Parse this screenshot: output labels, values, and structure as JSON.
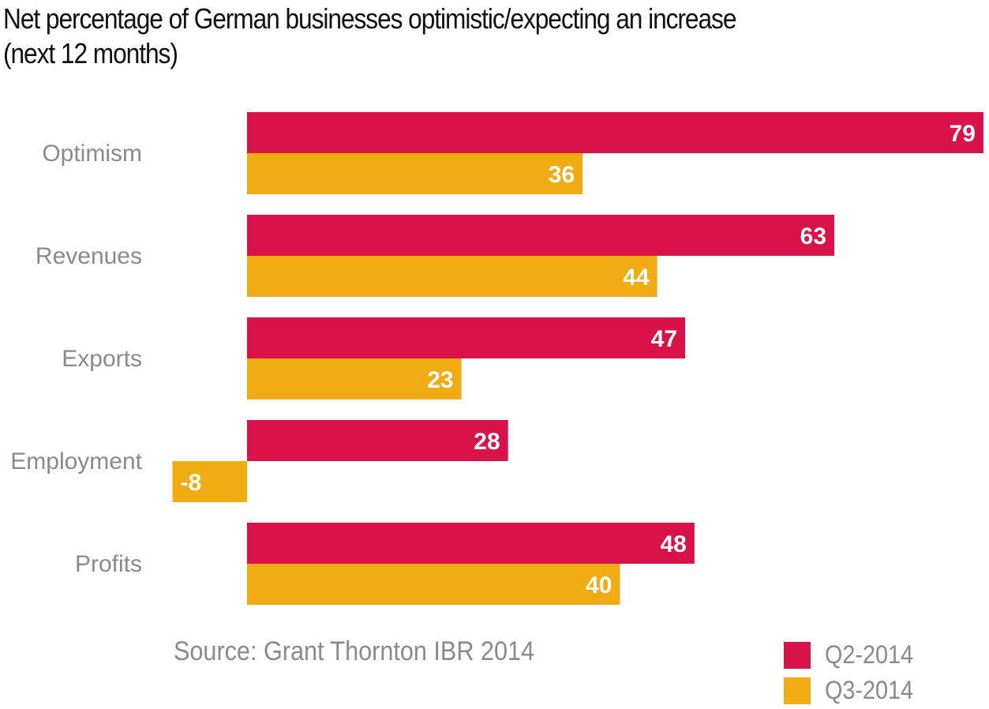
{
  "chart_data": {
    "type": "bar",
    "orientation": "horizontal",
    "title": "Net percentage of German businesses optimistic/expecting an increase (next 12 months)",
    "categories": [
      "Optimism",
      "Revenues",
      "Exports",
      "Employment",
      "Profits"
    ],
    "series": [
      {
        "name": "Q2-2014",
        "color": "#d9124a",
        "values": [
          79,
          63,
          47,
          28,
          48
        ]
      },
      {
        "name": "Q3-2014",
        "color": "#f0ac12",
        "values": [
          36,
          44,
          23,
          -8,
          40
        ]
      }
    ],
    "xlim": [
      -8,
      79
    ],
    "xlabel": "",
    "ylabel": "",
    "grid": false,
    "legend": "bottom-right",
    "source": "Source: Grant Thornton IBR 2014"
  }
}
